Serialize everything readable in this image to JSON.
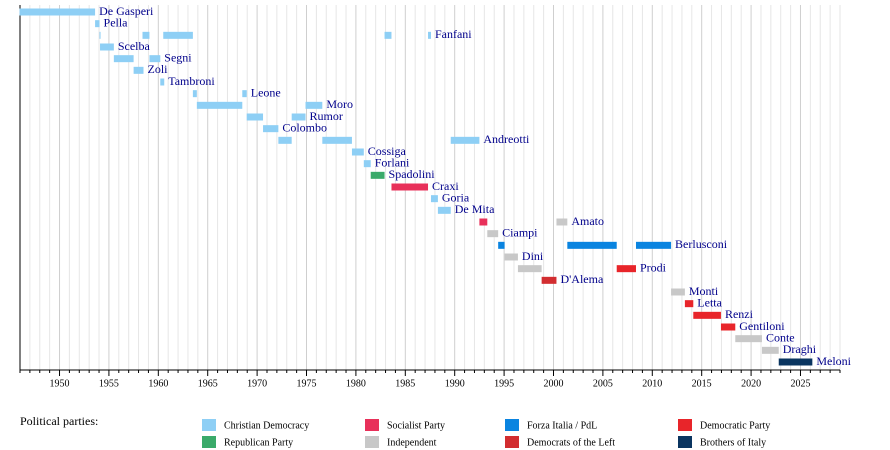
{
  "chart_data": {
    "type": "timeline",
    "xlim": [
      1946,
      2029
    ],
    "xticks": [
      1950,
      1955,
      1960,
      1965,
      1970,
      1975,
      1980,
      1985,
      1990,
      1995,
      2000,
      2005,
      2010,
      2015,
      2020,
      2025
    ],
    "grid": true,
    "grid_step": 1,
    "rows": [
      {
        "name": "De Gasperi",
        "terms": [
          {
            "start": 1945.95,
            "end": 1953.6,
            "color": "#8ecff5"
          }
        ]
      },
      {
        "name": "Pella",
        "terms": [
          {
            "start": 1953.6,
            "end": 1954.05,
            "color": "#8ecff5"
          }
        ]
      },
      {
        "name": "Fanfani",
        "terms": [
          {
            "start": 1954.05,
            "end": 1954.15,
            "color": "#8ecff5"
          },
          {
            "start": 1958.4,
            "end": 1959.1,
            "color": "#8ecff5"
          },
          {
            "start": 1960.5,
            "end": 1963.5,
            "color": "#8ecff5"
          },
          {
            "start": 1982.9,
            "end": 1983.6,
            "color": "#8ecff5"
          },
          {
            "start": 1987.3,
            "end": 1987.6,
            "color": "#8ecff5"
          }
        ]
      },
      {
        "name": "Scelba",
        "terms": [
          {
            "start": 1954.1,
            "end": 1955.5,
            "color": "#8ecff5"
          }
        ]
      },
      {
        "name": "Segni",
        "terms": [
          {
            "start": 1955.5,
            "end": 1957.5,
            "color": "#8ecff5"
          },
          {
            "start": 1959.1,
            "end": 1960.2,
            "color": "#8ecff5"
          }
        ]
      },
      {
        "name": "Zoli",
        "terms": [
          {
            "start": 1957.5,
            "end": 1958.5,
            "color": "#8ecff5"
          }
        ]
      },
      {
        "name": "Tambroni",
        "terms": [
          {
            "start": 1960.2,
            "end": 1960.6,
            "color": "#8ecff5"
          }
        ]
      },
      {
        "name": "Leone",
        "terms": [
          {
            "start": 1963.5,
            "end": 1963.9,
            "color": "#8ecff5"
          },
          {
            "start": 1968.5,
            "end": 1968.95,
            "color": "#8ecff5"
          }
        ]
      },
      {
        "name": "Moro",
        "terms": [
          {
            "start": 1963.9,
            "end": 1968.5,
            "color": "#8ecff5"
          },
          {
            "start": 1974.9,
            "end": 1976.6,
            "color": "#8ecff5"
          }
        ]
      },
      {
        "name": "Rumor",
        "terms": [
          {
            "start": 1968.95,
            "end": 1970.6,
            "color": "#8ecff5"
          },
          {
            "start": 1973.5,
            "end": 1974.9,
            "color": "#8ecff5"
          }
        ]
      },
      {
        "name": "Colombo",
        "terms": [
          {
            "start": 1970.6,
            "end": 1972.15,
            "color": "#8ecff5"
          }
        ]
      },
      {
        "name": "Andreotti",
        "terms": [
          {
            "start": 1972.15,
            "end": 1973.5,
            "color": "#8ecff5"
          },
          {
            "start": 1976.6,
            "end": 1979.6,
            "color": "#8ecff5"
          },
          {
            "start": 1989.6,
            "end": 1992.5,
            "color": "#8ecff5"
          }
        ]
      },
      {
        "name": "Cossiga",
        "terms": [
          {
            "start": 1979.6,
            "end": 1980.8,
            "color": "#8ecff5"
          }
        ]
      },
      {
        "name": "Forlani",
        "terms": [
          {
            "start": 1980.8,
            "end": 1981.5,
            "color": "#8ecff5"
          }
        ]
      },
      {
        "name": "Spadolini",
        "terms": [
          {
            "start": 1981.5,
            "end": 1982.9,
            "color": "#3aaa6a"
          }
        ]
      },
      {
        "name": "Craxi",
        "terms": [
          {
            "start": 1983.6,
            "end": 1987.3,
            "color": "#e8305a"
          }
        ]
      },
      {
        "name": "Goria",
        "terms": [
          {
            "start": 1987.6,
            "end": 1988.3,
            "color": "#8ecff5"
          }
        ]
      },
      {
        "name": "De Mita",
        "terms": [
          {
            "start": 1988.3,
            "end": 1989.6,
            "color": "#8ecff5"
          }
        ]
      },
      {
        "name": "Amato",
        "terms": [
          {
            "start": 1992.5,
            "end": 1993.3,
            "color": "#e8305a"
          },
          {
            "start": 2000.3,
            "end": 2001.4,
            "color": "#c8c8c8"
          }
        ]
      },
      {
        "name": "Ciampi",
        "terms": [
          {
            "start": 1993.3,
            "end": 1994.4,
            "color": "#c8c8c8"
          }
        ]
      },
      {
        "name": "Berlusconi",
        "terms": [
          {
            "start": 1994.4,
            "end": 1995.05,
            "color": "#0a84e0"
          },
          {
            "start": 2001.4,
            "end": 2006.4,
            "color": "#0a84e0"
          },
          {
            "start": 2008.35,
            "end": 2011.9,
            "color": "#0a84e0"
          }
        ]
      },
      {
        "name": "Dini",
        "terms": [
          {
            "start": 1995.05,
            "end": 1996.4,
            "color": "#c8c8c8"
          }
        ]
      },
      {
        "name": "Prodi",
        "terms": [
          {
            "start": 1996.4,
            "end": 1998.8,
            "color": "#c8c8c8"
          },
          {
            "start": 2006.4,
            "end": 2008.35,
            "color": "#e8252a"
          }
        ]
      },
      {
        "name": "D'Alema",
        "terms": [
          {
            "start": 1998.8,
            "end": 2000.3,
            "color": "#d22d30"
          }
        ]
      },
      {
        "name": "Monti",
        "terms": [
          {
            "start": 2011.9,
            "end": 2013.3,
            "color": "#c8c8c8"
          }
        ]
      },
      {
        "name": "Letta",
        "terms": [
          {
            "start": 2013.3,
            "end": 2014.15,
            "color": "#e8252a"
          }
        ]
      },
      {
        "name": "Renzi",
        "terms": [
          {
            "start": 2014.15,
            "end": 2016.95,
            "color": "#e8252a"
          }
        ]
      },
      {
        "name": "Gentiloni",
        "terms": [
          {
            "start": 2016.95,
            "end": 2018.4,
            "color": "#e8252a"
          }
        ]
      },
      {
        "name": "Conte",
        "terms": [
          {
            "start": 2018.4,
            "end": 2021.1,
            "color": "#c8c8c8"
          }
        ]
      },
      {
        "name": "Draghi",
        "terms": [
          {
            "start": 2021.1,
            "end": 2022.8,
            "color": "#c8c8c8"
          }
        ]
      },
      {
        "name": "Meloni",
        "terms": [
          {
            "start": 2022.8,
            "end": 2026.2,
            "color": "#0a3560"
          }
        ]
      }
    ],
    "legend_title": "Political parties:",
    "parties": [
      {
        "name": "Christian Democracy",
        "color": "#8ecff5"
      },
      {
        "name": "Republican Party",
        "color": "#3aaa6a"
      },
      {
        "name": "Socialist Party",
        "color": "#e8305a"
      },
      {
        "name": "Independent",
        "color": "#c8c8c8"
      },
      {
        "name": "Forza Italia / PdL",
        "color": "#0a84e0"
      },
      {
        "name": "Democrats of the Left",
        "color": "#d22d30"
      },
      {
        "name": "Democratic Party",
        "color": "#e8252a"
      },
      {
        "name": "Brothers of Italy",
        "color": "#0a3560"
      }
    ]
  }
}
